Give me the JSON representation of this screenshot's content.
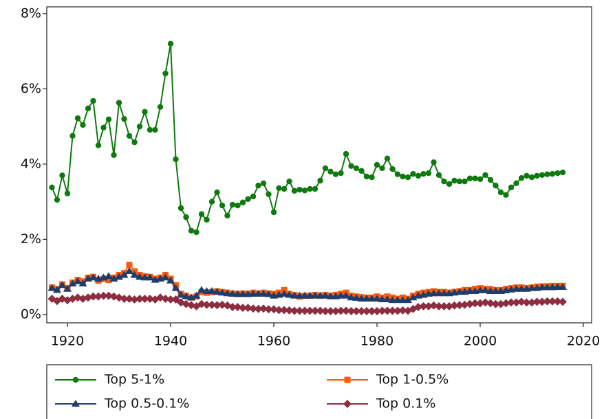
{
  "chart_data": {
    "type": "line",
    "x": [
      1917,
      1918,
      1919,
      1920,
      1921,
      1922,
      1923,
      1924,
      1925,
      1926,
      1927,
      1928,
      1929,
      1930,
      1931,
      1932,
      1933,
      1934,
      1935,
      1936,
      1937,
      1938,
      1939,
      1940,
      1941,
      1942,
      1943,
      1944,
      1945,
      1946,
      1947,
      1948,
      1949,
      1950,
      1951,
      1952,
      1953,
      1954,
      1955,
      1956,
      1957,
      1958,
      1959,
      1960,
      1961,
      1962,
      1963,
      1964,
      1965,
      1966,
      1967,
      1968,
      1969,
      1970,
      1971,
      1972,
      1973,
      1974,
      1975,
      1976,
      1977,
      1978,
      1979,
      1980,
      1981,
      1982,
      1983,
      1984,
      1985,
      1986,
      1987,
      1988,
      1989,
      1990,
      1991,
      1992,
      1993,
      1994,
      1995,
      1996,
      1997,
      1998,
      1999,
      2000,
      2001,
      2002,
      2003,
      2004,
      2005,
      2006,
      2007,
      2008,
      2009,
      2010,
      2011,
      2012,
      2013,
      2014,
      2015,
      2016
    ],
    "series": [
      {
        "name": "Top 5-1%",
        "color": "#0e7a0e",
        "marker": "circle",
        "values": [
          3.38,
          3.05,
          3.7,
          3.22,
          4.75,
          5.22,
          5.04,
          5.48,
          5.68,
          4.5,
          4.97,
          5.19,
          4.24,
          5.63,
          5.2,
          4.75,
          4.58,
          5.0,
          5.39,
          4.91,
          4.91,
          5.52,
          6.41,
          7.2,
          4.13,
          2.83,
          2.59,
          2.23,
          2.19,
          2.67,
          2.52,
          3.0,
          3.25,
          2.9,
          2.63,
          2.92,
          2.9,
          2.98,
          3.07,
          3.14,
          3.43,
          3.49,
          3.2,
          2.72,
          3.36,
          3.34,
          3.54,
          3.29,
          3.32,
          3.3,
          3.34,
          3.34,
          3.56,
          3.89,
          3.8,
          3.73,
          3.76,
          4.27,
          3.95,
          3.89,
          3.82,
          3.67,
          3.65,
          3.98,
          3.89,
          4.15,
          3.87,
          3.73,
          3.67,
          3.65,
          3.74,
          3.69,
          3.74,
          3.76,
          4.05,
          3.71,
          3.54,
          3.47,
          3.56,
          3.54,
          3.54,
          3.62,
          3.62,
          3.6,
          3.71,
          3.58,
          3.43,
          3.25,
          3.18,
          3.38,
          3.49,
          3.63,
          3.69,
          3.65,
          3.69,
          3.71,
          3.73,
          3.74,
          3.76,
          3.78
        ]
      },
      {
        "name": "Top 1-0.5%",
        "color": "#ff5a0a",
        "marker": "square",
        "values": [
          0.72,
          0.68,
          0.8,
          0.7,
          0.85,
          0.92,
          0.88,
          0.98,
          1.0,
          0.9,
          0.95,
          0.92,
          0.98,
          1.05,
          1.1,
          1.32,
          1.15,
          1.05,
          1.02,
          1.0,
          0.95,
          0.98,
          1.05,
          0.95,
          0.78,
          0.55,
          0.5,
          0.45,
          0.48,
          0.6,
          0.58,
          0.6,
          0.62,
          0.6,
          0.58,
          0.56,
          0.55,
          0.56,
          0.55,
          0.58,
          0.56,
          0.58,
          0.56,
          0.55,
          0.58,
          0.65,
          0.55,
          0.52,
          0.48,
          0.5,
          0.5,
          0.52,
          0.5,
          0.52,
          0.5,
          0.52,
          0.55,
          0.58,
          0.5,
          0.48,
          0.46,
          0.45,
          0.45,
          0.48,
          0.45,
          0.48,
          0.45,
          0.42,
          0.45,
          0.42,
          0.5,
          0.55,
          0.58,
          0.6,
          0.62,
          0.6,
          0.6,
          0.58,
          0.6,
          0.62,
          0.65,
          0.65,
          0.68,
          0.7,
          0.68,
          0.68,
          0.65,
          0.65,
          0.68,
          0.7,
          0.72,
          0.72,
          0.7,
          0.72,
          0.74,
          0.75,
          0.75,
          0.76,
          0.76,
          0.76
        ]
      },
      {
        "name": "Top 0.5-0.1%",
        "color": "#1f3d6b",
        "marker": "triangle",
        "values": [
          0.7,
          0.65,
          0.78,
          0.68,
          0.82,
          0.88,
          0.82,
          0.95,
          0.98,
          0.95,
          0.98,
          1.02,
          0.95,
          1.0,
          1.05,
          1.15,
          1.05,
          1.0,
          0.98,
          0.98,
          0.92,
          0.95,
          0.98,
          0.9,
          0.7,
          0.52,
          0.48,
          0.45,
          0.5,
          0.65,
          0.62,
          0.62,
          0.6,
          0.58,
          0.56,
          0.55,
          0.54,
          0.54,
          0.54,
          0.55,
          0.55,
          0.55,
          0.54,
          0.5,
          0.52,
          0.55,
          0.52,
          0.5,
          0.5,
          0.5,
          0.5,
          0.5,
          0.5,
          0.5,
          0.48,
          0.48,
          0.5,
          0.5,
          0.45,
          0.44,
          0.42,
          0.42,
          0.42,
          0.42,
          0.4,
          0.4,
          0.38,
          0.38,
          0.38,
          0.38,
          0.45,
          0.5,
          0.52,
          0.55,
          0.56,
          0.56,
          0.56,
          0.56,
          0.58,
          0.6,
          0.6,
          0.62,
          0.62,
          0.64,
          0.64,
          0.62,
          0.62,
          0.62,
          0.64,
          0.66,
          0.68,
          0.68,
          0.68,
          0.7,
          0.7,
          0.72,
          0.72,
          0.72,
          0.73,
          0.73
        ]
      },
      {
        "name": "Top 0.1%",
        "color": "#8c2d40",
        "marker": "diamond",
        "values": [
          0.42,
          0.36,
          0.42,
          0.38,
          0.42,
          0.45,
          0.42,
          0.45,
          0.48,
          0.48,
          0.5,
          0.5,
          0.48,
          0.45,
          0.42,
          0.42,
          0.4,
          0.42,
          0.42,
          0.42,
          0.4,
          0.45,
          0.42,
          0.4,
          0.4,
          0.32,
          0.28,
          0.25,
          0.22,
          0.28,
          0.26,
          0.26,
          0.25,
          0.26,
          0.24,
          0.2,
          0.2,
          0.18,
          0.18,
          0.16,
          0.15,
          0.16,
          0.14,
          0.14,
          0.12,
          0.12,
          0.11,
          0.1,
          0.1,
          0.1,
          0.1,
          0.1,
          0.1,
          0.09,
          0.09,
          0.09,
          0.1,
          0.1,
          0.09,
          0.09,
          0.09,
          0.09,
          0.09,
          0.09,
          0.1,
          0.1,
          0.1,
          0.1,
          0.11,
          0.1,
          0.15,
          0.2,
          0.22,
          0.22,
          0.24,
          0.22,
          0.22,
          0.22,
          0.24,
          0.25,
          0.26,
          0.28,
          0.3,
          0.3,
          0.32,
          0.3,
          0.28,
          0.28,
          0.3,
          0.32,
          0.32,
          0.34,
          0.32,
          0.32,
          0.34,
          0.34,
          0.35,
          0.35,
          0.35,
          0.34
        ]
      }
    ],
    "xlim": [
      1916,
      2021.6
    ],
    "xticks": [
      1920,
      1940,
      1960,
      1980,
      2000,
      2020
    ],
    "ylim": [
      -0.22,
      8.18
    ],
    "yticks": [
      {
        "value": 0,
        "label": "0%"
      },
      {
        "value": 2,
        "label": "2%"
      },
      {
        "value": 4,
        "label": "4%"
      },
      {
        "value": 6,
        "label": "6%"
      },
      {
        "value": 8,
        "label": "8%"
      }
    ]
  }
}
